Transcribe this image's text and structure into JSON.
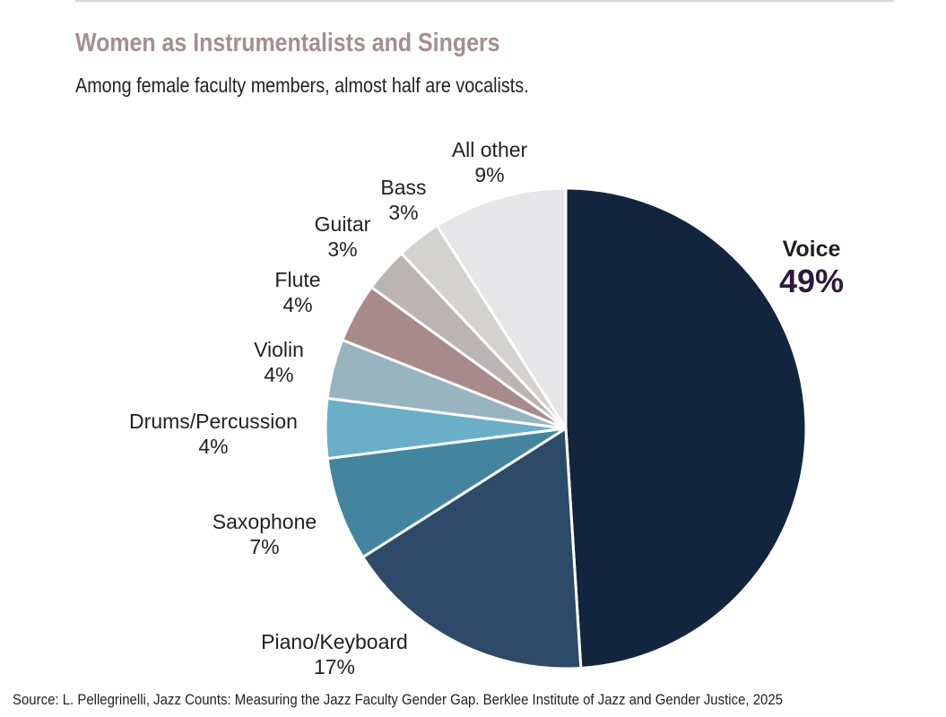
{
  "title": "Women as Instrumentalists and Singers",
  "subtitle": "Among female faculty members, almost half are vocalists.",
  "source": "Source: L. Pellegrinelli, Jazz Counts: Measuring the Jazz Faculty Gender Gap. Berklee Institute of Jazz and Gender Justice, 2025",
  "chart_data": {
    "type": "pie",
    "title": "Women as Instrumentalists and Singers",
    "start": "12 o'clock, clockwise",
    "slices": [
      {
        "label": "Voice",
        "value": 49,
        "display": "49%",
        "color": "#13253e",
        "highlight": true
      },
      {
        "label": "Piano/Keyboard",
        "value": 17,
        "display": "17%",
        "color": "#2e4a69"
      },
      {
        "label": "Saxophone",
        "value": 7,
        "display": "7%",
        "color": "#43859f"
      },
      {
        "label": "Drums/Percussion",
        "value": 4,
        "display": "4%",
        "color": "#6aafc7"
      },
      {
        "label": "Violin",
        "value": 4,
        "display": "4%",
        "color": "#98b4bf"
      },
      {
        "label": "Flute",
        "value": 4,
        "display": "4%",
        "color": "#a88a8b"
      },
      {
        "label": "Guitar",
        "value": 3,
        "display": "3%",
        "color": "#bab4b5"
      },
      {
        "label": "Bass",
        "value": 3,
        "display": "3%",
        "color": "#d3d2cf"
      },
      {
        "label": "All other",
        "value": 9,
        "display": "9%",
        "color": "#e6e6e9"
      }
    ]
  }
}
